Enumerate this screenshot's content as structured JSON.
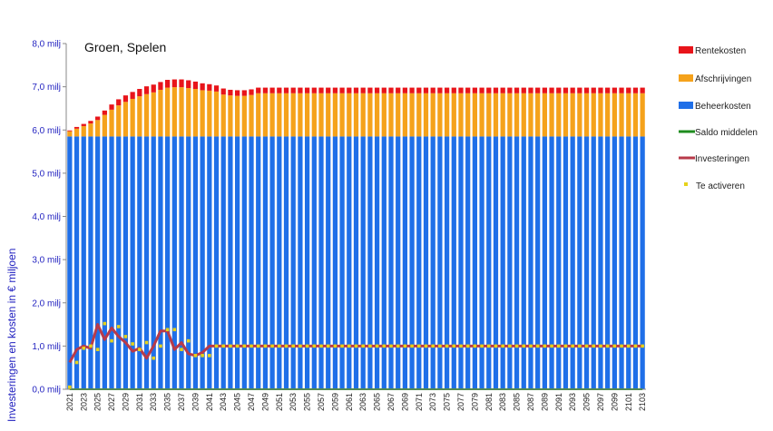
{
  "chart_data": {
    "type": "bar",
    "title": "Groen, Spelen",
    "ylabel": "Investeringen en kosten in  € miljoen",
    "xlabel": "",
    "ylim": [
      0,
      8
    ],
    "yticks": [
      "0,0 milj",
      "1,0 milj",
      "2,0 milj",
      "3,0 milj",
      "4,0 milj",
      "5,0 milj",
      "6,0 milj",
      "7,0 milj",
      "8,0 milj"
    ],
    "x_start": 2021,
    "x_end": 2103,
    "x_label_step": 2,
    "grid": false,
    "legend_position": "right",
    "stacked_series": [
      {
        "name": "Beheerkosten",
        "color": "#1f6fe8",
        "default": 5.85,
        "values": [
          5.85
        ]
      },
      {
        "name": "Afschrijvingen",
        "color": "#f5a21b",
        "default": 1.0,
        "values": [
          0.12,
          0.18,
          0.24,
          0.3,
          0.38,
          0.5,
          0.62,
          0.72,
          0.8,
          0.87,
          0.93,
          0.98,
          1.02,
          1.08,
          1.13,
          1.14,
          1.14,
          1.12,
          1.1,
          1.07,
          1.06,
          1.04,
          0.97,
          0.95,
          0.94,
          0.94,
          0.96,
          1.0
        ]
      },
      {
        "name": "Rentekosten",
        "color": "#e8141a",
        "default": 0.13,
        "values": [
          0.02,
          0.04,
          0.05,
          0.06,
          0.08,
          0.1,
          0.12,
          0.14,
          0.15,
          0.16,
          0.17,
          0.18,
          0.18,
          0.18,
          0.18,
          0.18,
          0.18,
          0.18,
          0.17,
          0.16,
          0.15,
          0.14,
          0.14,
          0.13,
          0.13,
          0.13,
          0.13,
          0.13
        ]
      }
    ],
    "line_series": [
      {
        "name": "Saldo middelen",
        "color": "#1e8c1e",
        "default": 0.0,
        "values": [
          0.0
        ]
      },
      {
        "name": "Investeringen",
        "color": "#b83a4a",
        "default": 1.0,
        "values": [
          0.62,
          0.92,
          1.0,
          0.95,
          1.5,
          1.15,
          1.42,
          1.22,
          1.08,
          0.88,
          0.95,
          0.72,
          1.0,
          1.35,
          1.35,
          0.92,
          1.08,
          0.82,
          0.78,
          0.85,
          1.0
        ]
      }
    ],
    "point_series": [
      {
        "name": "Te activeren",
        "color": "#e6d21a",
        "default": 1.0,
        "values": [
          0.05,
          0.62,
          0.95,
          1.0,
          0.92,
          1.52,
          1.12,
          1.45,
          1.22,
          1.05,
          0.92,
          1.08,
          0.72,
          1.0,
          1.38,
          1.38,
          0.92,
          1.12,
          0.78,
          0.78,
          0.78,
          1.0
        ]
      }
    ]
  }
}
